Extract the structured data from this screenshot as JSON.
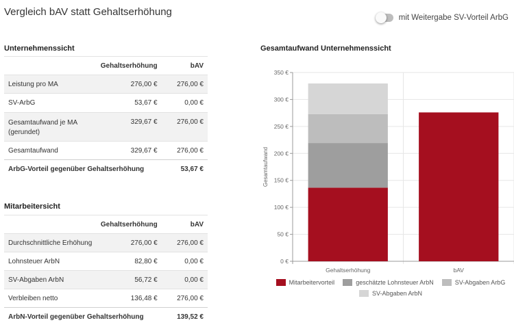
{
  "header": {
    "title": "Vergleich bAV statt Gehaltserhöhung",
    "toggle_label": "mit Weitergabe SV-Vorteil ArbG",
    "toggle_on": false
  },
  "company": {
    "title": "Unternehmenssicht",
    "columns": [
      "",
      "Gehaltserhöhung",
      "bAV"
    ],
    "rows": [
      {
        "label": "Leistung pro MA",
        "raise": "276,00 €",
        "bav": "276,00 €"
      },
      {
        "label": "SV-ArbG",
        "raise": "53,67 €",
        "bav": "0,00 €"
      },
      {
        "label": "Gesamtaufwand je MA",
        "label2": "(gerundet)",
        "raise": "329,67 €",
        "bav": "276,00 €"
      },
      {
        "label": "Gesamtaufwand",
        "raise": "329,67 €",
        "bav": "276,00 €"
      }
    ],
    "total": {
      "label": "ArbG-Vorteil gegenüber Gehaltserhöhung",
      "value": "53,67 €"
    }
  },
  "employee": {
    "title": "Mitarbeitersicht",
    "columns": [
      "",
      "Gehaltserhöhung",
      "bAV"
    ],
    "rows": [
      {
        "label": "Durchschnittliche Erhöhung",
        "raise": "276,00 €",
        "bav": "276,00 €"
      },
      {
        "label": "Lohnsteuer ArbN",
        "raise": "82,80 €",
        "bav": "0,00 €"
      },
      {
        "label": "SV-Abgaben ArbN",
        "raise": "56,72 €",
        "bav": "0,00 €"
      },
      {
        "label": "Verbleiben netto",
        "raise": "136,48 €",
        "bav": "276,00 €"
      }
    ],
    "total": {
      "label": "ArbN-Vorteil gegenüber Gehaltserhöhung",
      "value": "139,52 €"
    }
  },
  "chart_data": {
    "type": "bar",
    "stacked": true,
    "title": "Gesamtaufwand Unternehmenssicht",
    "ylabel": "Gesamtaufwand",
    "xlabel": "",
    "ylim": [
      0,
      350
    ],
    "yticks": [
      0,
      50,
      100,
      150,
      200,
      250,
      300,
      350
    ],
    "ytick_labels": [
      "0 €",
      "50 €",
      "100 €",
      "150 €",
      "200 €",
      "250 €",
      "300 €",
      "350 €"
    ],
    "categories": [
      "Gehaltserhöhung",
      "bAV"
    ],
    "grid": true,
    "legend": "bottom",
    "series": [
      {
        "name": "Mitarbeitervorteil",
        "color": "#a50f1f",
        "values": [
          136.48,
          276.0
        ]
      },
      {
        "name": "geschätzte Lohnsteuer ArbN",
        "color": "#9e9e9e",
        "values": [
          82.8,
          0
        ]
      },
      {
        "name": "SV-Abgaben ArbG",
        "color": "#bdbdbd",
        "values": [
          53.67,
          0
        ]
      },
      {
        "name": "SV-Abgaben ArbN",
        "color": "#d6d6d6",
        "values": [
          56.72,
          0
        ]
      }
    ]
  }
}
